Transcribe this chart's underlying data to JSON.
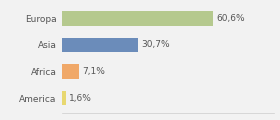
{
  "categories": [
    "Europa",
    "Asia",
    "Africa",
    "America"
  ],
  "values": [
    60.6,
    30.7,
    7.1,
    1.6
  ],
  "labels": [
    "60,6%",
    "30,7%",
    "7,1%",
    "1,6%"
  ],
  "bar_colors": [
    "#b5c98e",
    "#6b8cba",
    "#f0a868",
    "#e8d870"
  ],
  "background_color": "#f2f2f2",
  "xlim": [
    0,
    85
  ],
  "bar_height": 0.55,
  "label_fontsize": 6.5,
  "category_fontsize": 6.5
}
